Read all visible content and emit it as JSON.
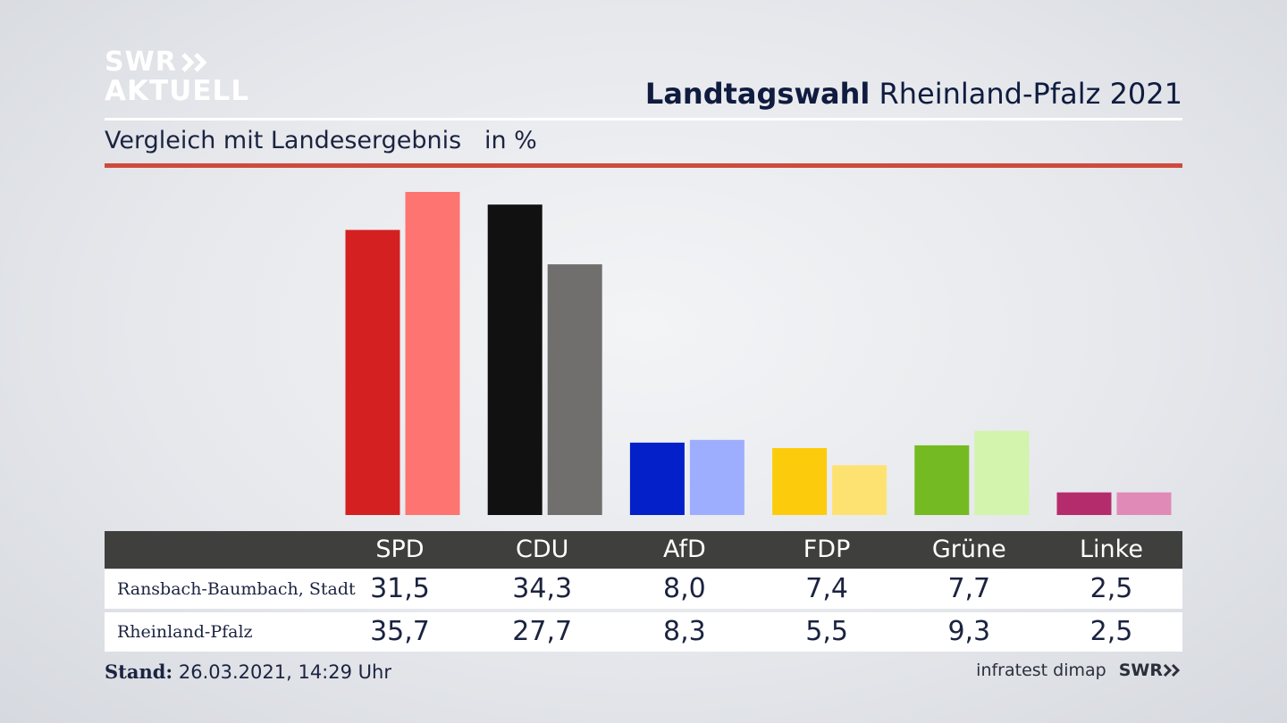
{
  "brand": {
    "line1": "SWR",
    "line2": "AKTUELL"
  },
  "header": {
    "title_bold": "Landtagswahl",
    "title_rest": "Rheinland-Pfalz 2021"
  },
  "subtitle": {
    "text": "Vergleich mit Landesergebnis",
    "unit": "in %"
  },
  "colors": {
    "accent_rule": "#cf4a3c",
    "series1": [
      "#d42020",
      "#111111",
      "#0420c8",
      "#fccc0c",
      "#74ba22",
      "#b52c6c"
    ],
    "series2": [
      "#fe7470",
      "#706f6e",
      "#9eaefe",
      "#fde271",
      "#d3f4ac",
      "#e08ab8"
    ]
  },
  "chart_data": {
    "type": "bar",
    "categories": [
      "SPD",
      "CDU",
      "AfD",
      "FDP",
      "Grüne",
      "Linke"
    ],
    "series": [
      {
        "name": "Ransbach-Baumbach, Stadt",
        "values": [
          31.5,
          34.3,
          8.0,
          7.4,
          7.7,
          2.5
        ],
        "labels": [
          "31,5",
          "34,3",
          "8,0",
          "7,4",
          "7,7",
          "2,5"
        ]
      },
      {
        "name": "Rheinland-Pfalz",
        "values": [
          35.7,
          27.7,
          8.3,
          5.5,
          9.3,
          2.5
        ],
        "labels": [
          "35,7",
          "27,7",
          "8,3",
          "5,5",
          "9,3",
          "2,5"
        ]
      }
    ],
    "ylim": [
      0,
      35.7
    ],
    "grid": false
  },
  "footer": {
    "stand_label": "Stand:",
    "stand_value": "26.03.2021, 14:29 Uhr",
    "source": "infratest dimap",
    "source_brand": "SWR"
  }
}
